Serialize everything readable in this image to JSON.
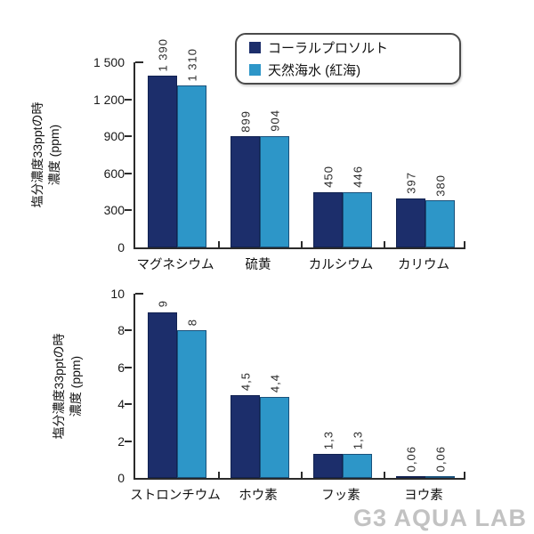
{
  "watermark": "G3 AQUA LAB",
  "colors": {
    "series1": "#1c2e6b",
    "series2": "#2d96c8",
    "axis": "#2b2b2b",
    "watermark": "#c2c2c2"
  },
  "legend": {
    "items": [
      {
        "label": "コーラルプロソルト",
        "color": "#1c2e6b"
      },
      {
        "label": "天然海水 (紅海)",
        "color": "#2d96c8"
      }
    ]
  },
  "chart_data": [
    {
      "type": "bar",
      "title": "",
      "xlabel": "",
      "ylabel": "塩分濃度33pptの時 濃度 (ppm)",
      "ylabel_lines": [
        "塩分濃度33pptの時",
        "濃度 (ppm)"
      ],
      "categories": [
        "マグネシウム",
        "硫黄",
        "カルシウム",
        "カリウム"
      ],
      "series": [
        {
          "name": "コーラルプロソルト",
          "color": "#1c2e6b",
          "values": [
            1390,
            899,
            450,
            397
          ],
          "value_labels": [
            "1 390",
            "899",
            "450",
            "397"
          ]
        },
        {
          "name": "天然海水 (紅海)",
          "color": "#2d96c8",
          "values": [
            1310,
            904,
            446,
            380
          ],
          "value_labels": [
            "1 310",
            "904",
            "446",
            "380"
          ]
        }
      ],
      "ylim": [
        0,
        1500
      ],
      "ytick_values": [
        0,
        300,
        600,
        900,
        1200,
        1500
      ],
      "ytick_labels": [
        "0",
        "300",
        "600",
        "900",
        "1 200",
        "1 500"
      ],
      "grid": false,
      "legend_position": "top-right"
    },
    {
      "type": "bar",
      "title": "",
      "xlabel": "",
      "ylabel": "塩分濃度33pptの時 濃度 (ppm)",
      "ylabel_lines": [
        "塩分濃度33pptの時",
        "濃度 (ppm)"
      ],
      "categories": [
        "ストロンチウム",
        "ホウ素",
        "フッ素",
        "ヨウ素"
      ],
      "series": [
        {
          "name": "コーラルプロソルト",
          "color": "#1c2e6b",
          "values": [
            9,
            4.5,
            1.3,
            0.06
          ],
          "value_labels": [
            "9",
            "4,5",
            "1,3",
            "0,06"
          ]
        },
        {
          "name": "天然海水 (紅海)",
          "color": "#2d96c8",
          "values": [
            8,
            4.4,
            1.3,
            0.06
          ],
          "value_labels": [
            "8",
            "4,4",
            "1,3",
            "0,06"
          ]
        }
      ],
      "ylim": [
        0,
        10
      ],
      "ytick_values": [
        0,
        2,
        4,
        6,
        8,
        10
      ],
      "ytick_labels": [
        "0",
        "2",
        "4",
        "6",
        "8",
        "10"
      ],
      "grid": false,
      "legend_position": "none"
    }
  ]
}
